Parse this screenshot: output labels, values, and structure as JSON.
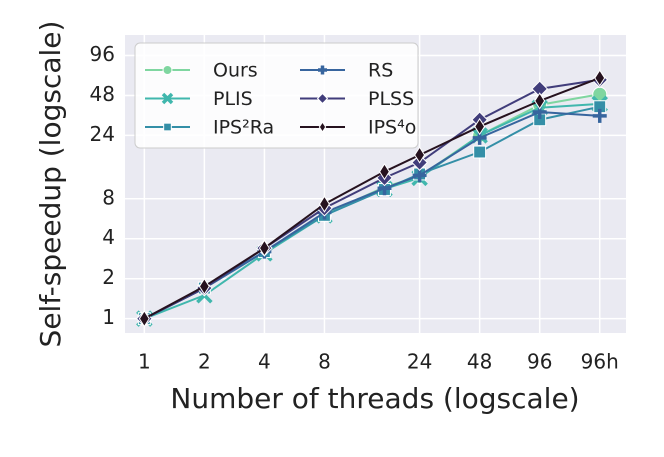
{
  "chart_data": {
    "type": "line",
    "x_label": "Number of threads (logscale)",
    "y_label": "Self-speedup (logscale)",
    "x_scale": "log",
    "y_scale": "log",
    "grid": true,
    "legend_position": "upper left",
    "x": [
      1,
      2,
      4,
      8,
      16,
      24,
      48,
      96,
      192
    ],
    "xlim": [
      0.8,
      260
    ],
    "xticks": [
      1,
      2,
      4,
      8,
      24,
      48,
      96,
      {
        "value": 192,
        "label": "96h"
      }
    ],
    "ylim": [
      0.78,
      137
    ],
    "yticks": [
      1,
      2,
      4,
      8,
      24,
      48,
      96
    ],
    "series": [
      {
        "name": "Ours",
        "color": "#7fd6a0",
        "marker": "circle",
        "values": [
          1,
          1.7,
          3.2,
          6.1,
          9.8,
          11.8,
          24,
          40.8,
          49
        ]
      },
      {
        "name": "PLIS",
        "color": "#40b7ad",
        "marker": "x",
        "values": [
          1,
          1.5,
          3.1,
          6.0,
          9.5,
          11.5,
          24,
          38.8,
          41.5
        ]
      },
      {
        "name": "IPS²Ra",
        "color": "#348fa7",
        "marker": "square",
        "values": [
          1,
          1.7,
          3.2,
          6.0,
          9.4,
          12.3,
          18,
          31.5,
          39.5
        ]
      },
      {
        "name": "RS",
        "color": "#37659e",
        "marker": "plus",
        "values": [
          1,
          1.7,
          3.2,
          6.3,
          9.6,
          12.0,
          23,
          36,
          33.7
        ]
      },
      {
        "name": "PLSS",
        "color": "#413d7b",
        "marker": "diamond",
        "values": [
          1,
          1.7,
          3.4,
          6.8,
          11.5,
          15,
          31.5,
          53.8,
          63
        ]
      },
      {
        "name": "IPS⁴o",
        "color": "#26121f",
        "marker": "thin_diamond",
        "values": [
          1,
          1.75,
          3.4,
          7.3,
          12.8,
          17.1,
          28,
          43.7,
          65
        ]
      }
    ]
  }
}
